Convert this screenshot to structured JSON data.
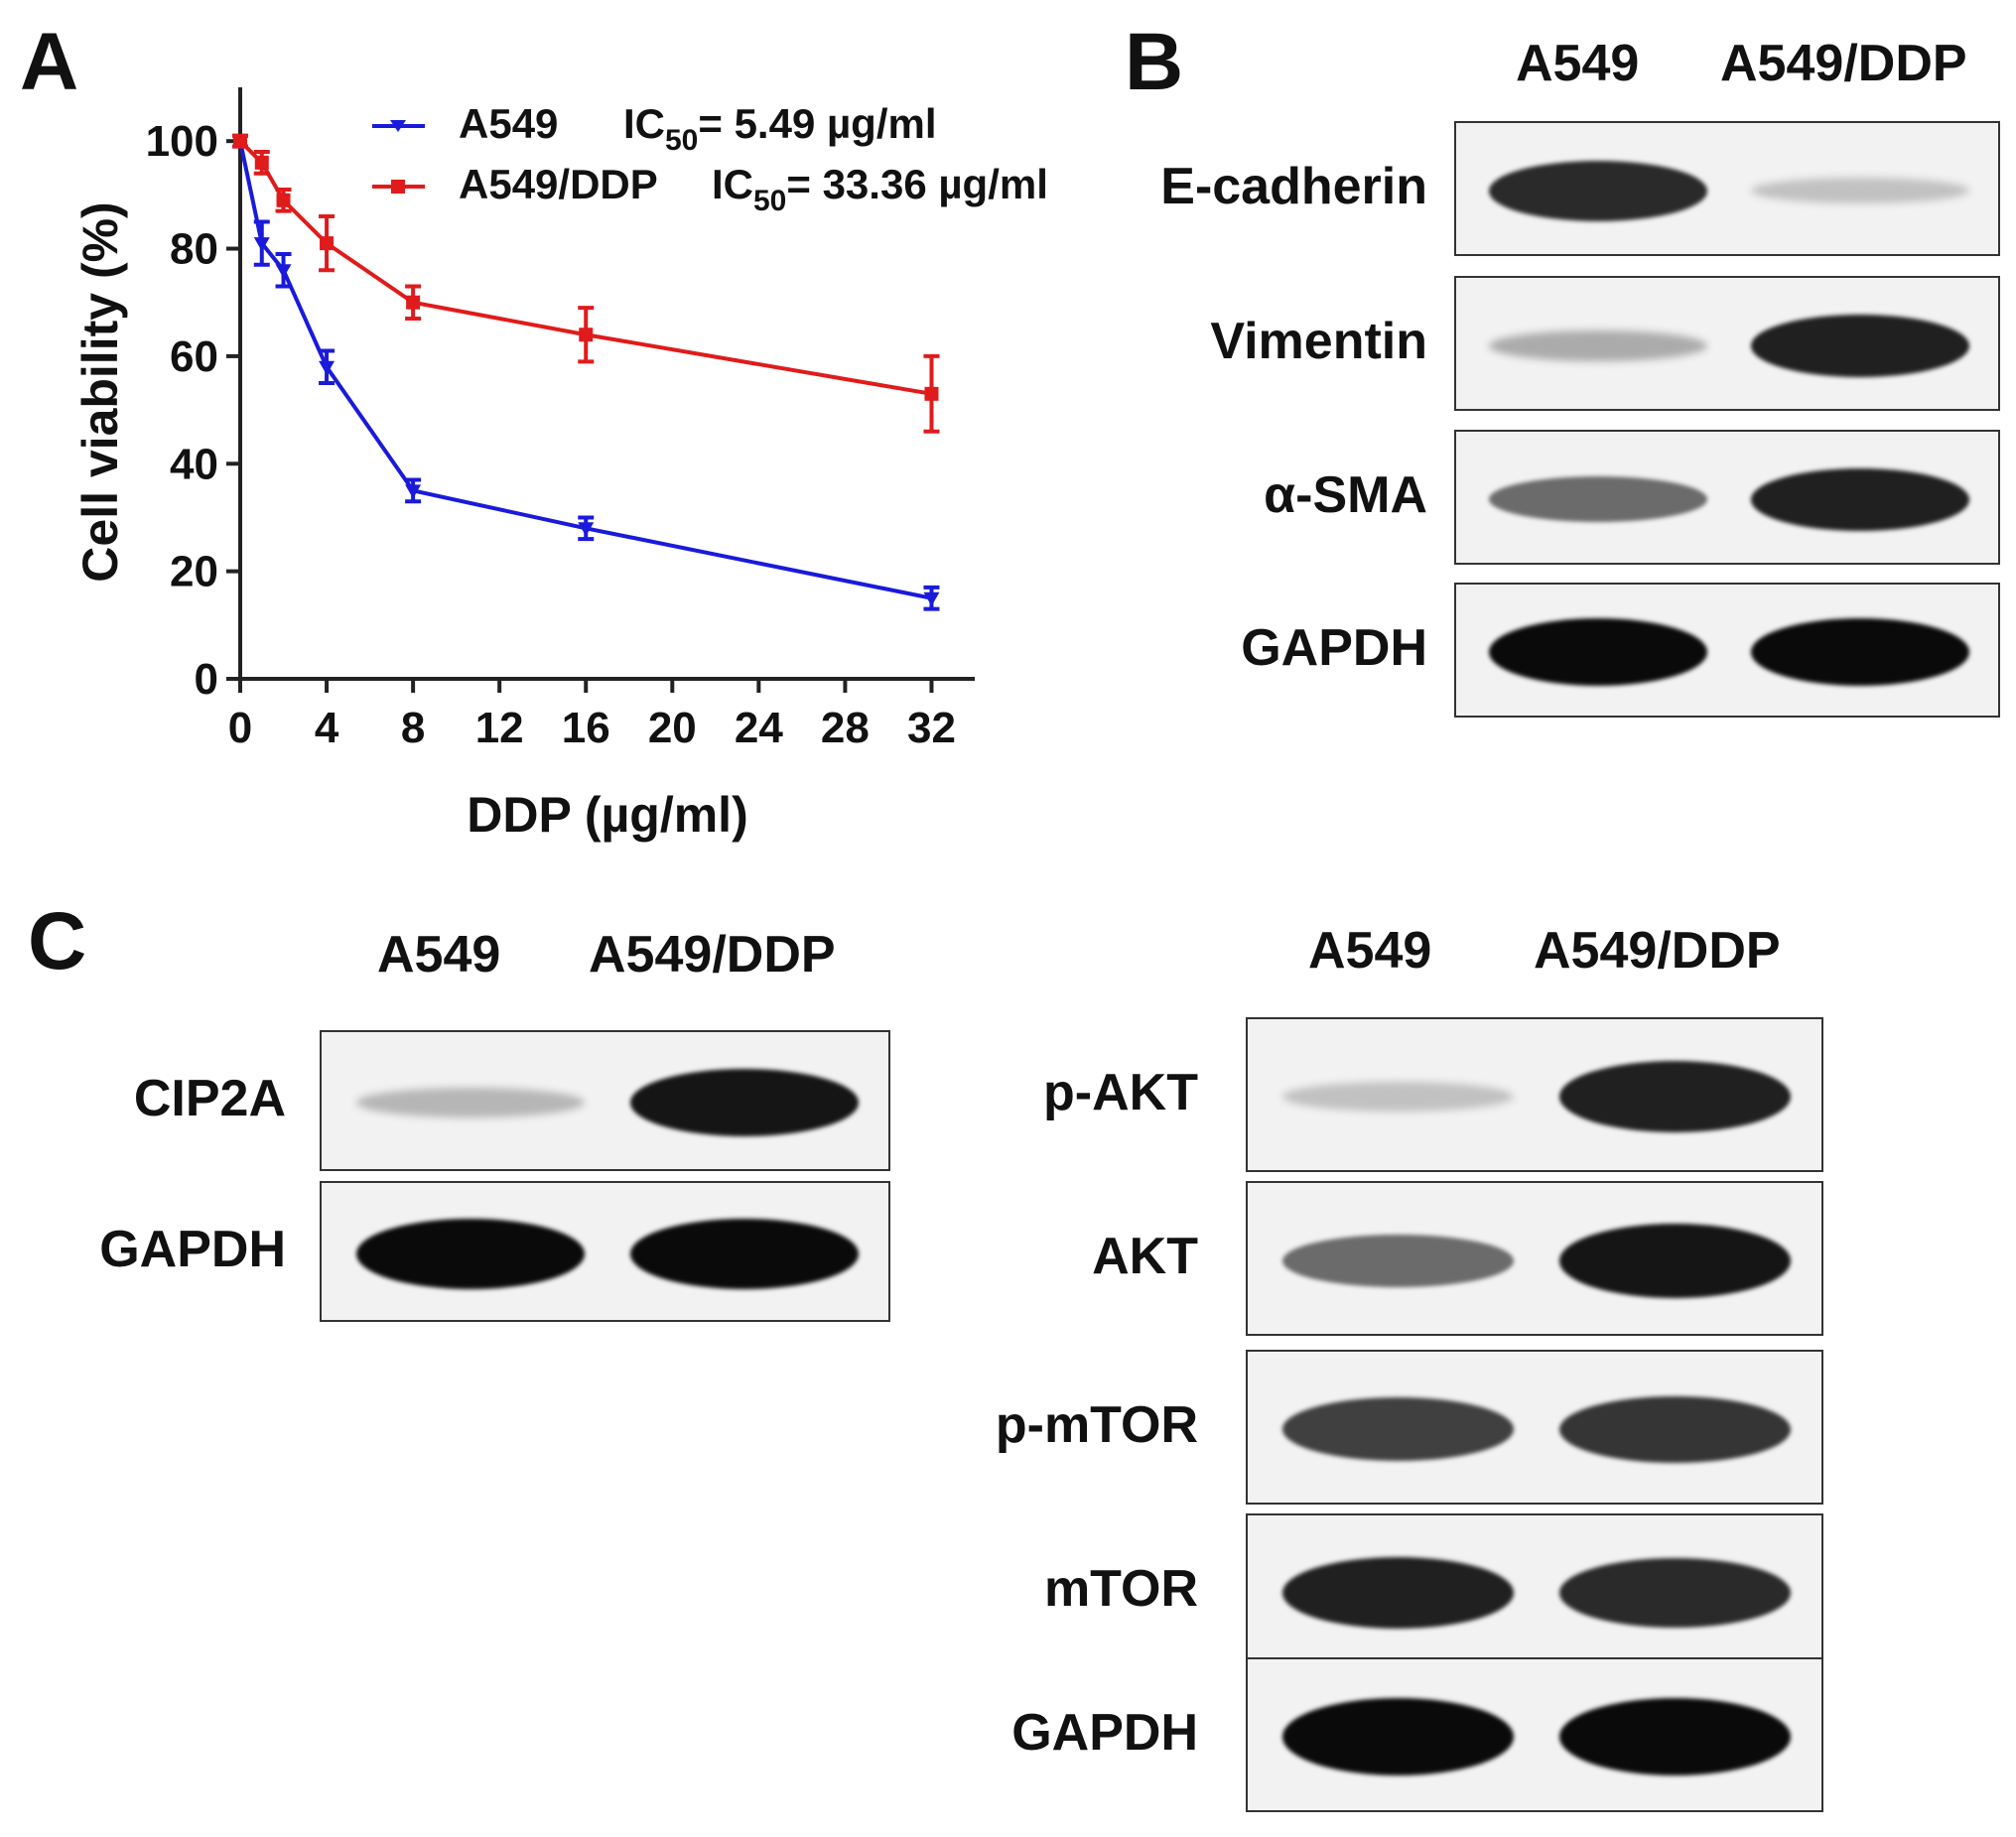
{
  "panels": {
    "a": "A",
    "b": "B",
    "c": "C"
  },
  "chart_data": {
    "type": "line",
    "title": "",
    "xlabel": "DDP (µg/ml)",
    "ylabel": "Cell viability (%)",
    "xlim": [
      0,
      34
    ],
    "ylim": [
      0,
      110
    ],
    "x_ticks": [
      0,
      4,
      8,
      12,
      16,
      20,
      24,
      28,
      32
    ],
    "y_ticks": [
      0,
      20,
      40,
      60,
      80,
      100
    ],
    "grid": false,
    "legend_position": "top",
    "series": [
      {
        "name": "A549",
        "ic50_label": "IC",
        "ic50_sub": "50",
        "ic50_value": "= 5.49 µg/ml",
        "color": "#1a1adb",
        "marker": "triangle-down",
        "x": [
          0,
          1,
          2,
          4,
          8,
          16,
          32
        ],
        "y": [
          100,
          81,
          76,
          58,
          35,
          28,
          15
        ],
        "error": [
          1,
          4,
          3,
          3,
          2,
          2,
          2
        ]
      },
      {
        "name": "A549/DDP",
        "ic50_label": "IC",
        "ic50_sub": "50",
        "ic50_value": "= 33.36 µg/ml",
        "color": "#e01b1b",
        "marker": "square",
        "x": [
          0,
          1,
          2,
          4,
          8,
          16,
          32
        ],
        "y": [
          100,
          96,
          89,
          81,
          70,
          64,
          53
        ],
        "error": [
          1,
          2,
          2,
          5,
          3,
          5,
          7
        ]
      }
    ]
  },
  "blots": {
    "b": {
      "lanes": [
        "A549",
        "A549/DDP"
      ],
      "rows": [
        {
          "label": "E-cadherin",
          "bands": [
            0.85,
            0.15
          ]
        },
        {
          "label": "Vimentin",
          "bands": [
            0.25,
            0.9
          ]
        },
        {
          "label": "α-SMA",
          "bands": [
            0.55,
            0.9
          ]
        },
        {
          "label": "GAPDH",
          "bands": [
            1.0,
            1.0
          ]
        }
      ]
    },
    "c_left": {
      "lanes": [
        "A549",
        "A549/DDP"
      ],
      "rows": [
        {
          "label": "CIP2A",
          "bands": [
            0.2,
            0.95
          ]
        },
        {
          "label": "GAPDH",
          "bands": [
            1.0,
            1.0
          ]
        }
      ]
    },
    "c_right": {
      "lanes": [
        "A549",
        "A549/DDP"
      ],
      "rows": [
        {
          "label": "p-AKT",
          "bands": [
            0.15,
            0.9
          ]
        },
        {
          "label": "AKT",
          "bands": [
            0.55,
            0.95
          ]
        },
        {
          "label": "p-mTOR",
          "bands": [
            0.75,
            0.8
          ]
        },
        {
          "label": "mTOR",
          "bands": [
            0.9,
            0.85
          ]
        },
        {
          "label": "GAPDH",
          "bands": [
            1.0,
            1.0
          ]
        }
      ]
    }
  }
}
